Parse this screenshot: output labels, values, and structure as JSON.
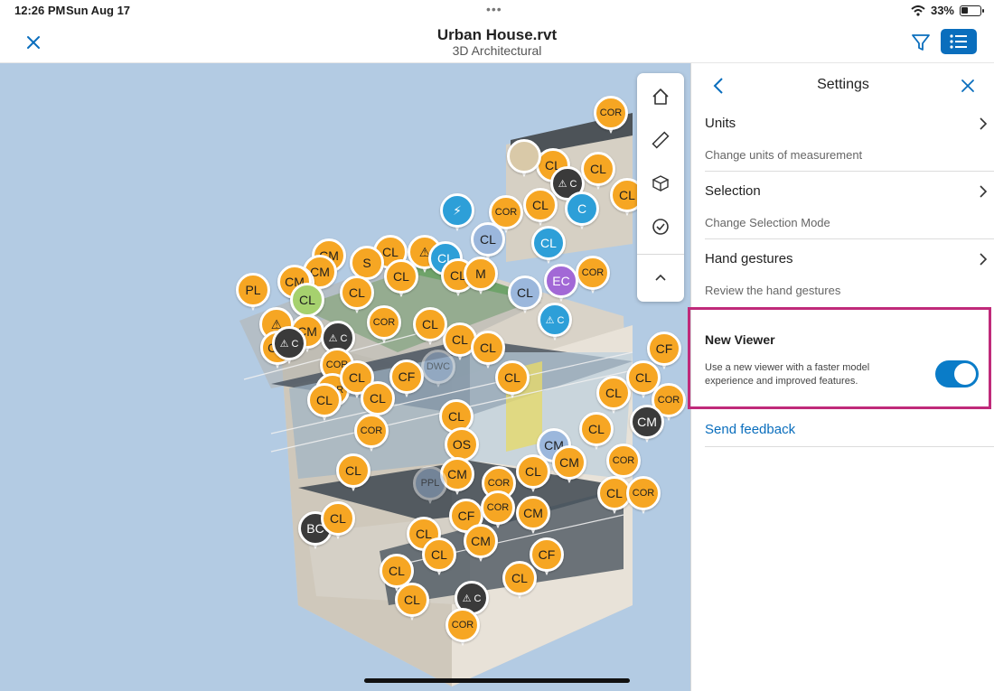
{
  "status_bar": {
    "time": "12:26 PM",
    "date": "Sun Aug 17",
    "battery": "33%",
    "battery_level": 0.33
  },
  "header": {
    "title": "Urban House.rvt",
    "subtitle": "3D Architectural",
    "close_icon": "close-icon",
    "filter_icon": "filter-icon",
    "list_icon": "list-icon",
    "accent": "#0a6ebd"
  },
  "viewer": {
    "background": "#b3cbe3",
    "toolbar": [
      "home-icon",
      "measure-icon",
      "model-browser-icon",
      "checkmark-icon",
      "collapse-icon"
    ],
    "marker_colors": {
      "orange": "#f6a623",
      "dark": "#3a3a3a",
      "blue": "#2d9fd8",
      "lightblue": "#9bb7dc",
      "green": "#a6d16e",
      "purple": "#a268d6",
      "tan": "#d9c9a8"
    },
    "markers": [
      {
        "label": "COR",
        "color": "orange"
      },
      {
        "label": "CL",
        "color": "orange"
      },
      {
        "label": "⚠ C",
        "color": "dark"
      },
      {
        "label": "CL",
        "color": "orange"
      },
      {
        "label": "CL",
        "color": "orange"
      },
      {
        "label": "",
        "color": "tan"
      },
      {
        "label": "⚡",
        "color": "blue"
      },
      {
        "label": "COR",
        "color": "orange"
      },
      {
        "label": "CL",
        "color": "orange"
      },
      {
        "label": "CL",
        "color": "lightblue"
      },
      {
        "label": "CL",
        "color": "blue"
      },
      {
        "label": "C",
        "color": "blue"
      },
      {
        "label": "CM",
        "color": "orange"
      },
      {
        "label": "CL",
        "color": "orange"
      },
      {
        "label": "⚠",
        "color": "orange"
      },
      {
        "label": "CM",
        "color": "orange"
      },
      {
        "label": "CM",
        "color": "orange"
      },
      {
        "label": "S",
        "color": "orange"
      },
      {
        "label": "CL",
        "color": "orange"
      },
      {
        "label": "CL",
        "color": "blue"
      },
      {
        "label": "CL",
        "color": "orange"
      },
      {
        "label": "M",
        "color": "orange"
      },
      {
        "label": "COR",
        "color": "orange"
      },
      {
        "label": "EC",
        "color": "purple"
      },
      {
        "label": "PL",
        "color": "orange"
      },
      {
        "label": "CM",
        "color": "orange"
      },
      {
        "label": "CL",
        "color": "green"
      },
      {
        "label": "CL",
        "color": "orange"
      },
      {
        "label": "CM",
        "color": "orange"
      },
      {
        "label": "CL",
        "color": "lightblue"
      },
      {
        "label": "COR",
        "color": "orange"
      },
      {
        "label": "⚠",
        "color": "orange"
      },
      {
        "label": "CM",
        "color": "orange"
      },
      {
        "label": "⚠ C",
        "color": "dark"
      },
      {
        "label": "⚠ C",
        "color": "dark"
      },
      {
        "label": "COR",
        "color": "orange"
      },
      {
        "label": "CL",
        "color": "orange"
      },
      {
        "label": "CL",
        "color": "orange"
      },
      {
        "label": "CL",
        "color": "orange"
      },
      {
        "label": "⚠ C",
        "color": "blue"
      },
      {
        "label": "CF",
        "color": "orange"
      },
      {
        "label": "COR",
        "color": "orange"
      },
      {
        "label": "CL",
        "color": "orange"
      },
      {
        "label": "CL",
        "color": "orange"
      },
      {
        "label": "CF",
        "color": "orange"
      },
      {
        "label": "DWC",
        "color": "lightblue"
      },
      {
        "label": "CL",
        "color": "orange"
      },
      {
        "label": "CL",
        "color": "orange"
      },
      {
        "label": "CL",
        "color": "orange"
      },
      {
        "label": "COR",
        "color": "orange"
      },
      {
        "label": "CL",
        "color": "orange"
      },
      {
        "label": "CL",
        "color": "orange"
      },
      {
        "label": "CM",
        "color": "dark"
      },
      {
        "label": "COR",
        "color": "orange"
      },
      {
        "label": "CL",
        "color": "orange"
      },
      {
        "label": "OS",
        "color": "orange"
      },
      {
        "label": "CM",
        "color": "lightblue"
      },
      {
        "label": "CM",
        "color": "orange"
      },
      {
        "label": "CL",
        "color": "orange"
      },
      {
        "label": "COR",
        "color": "orange"
      },
      {
        "label": "CM",
        "color": "orange"
      },
      {
        "label": "PPL",
        "color": "lightblue"
      },
      {
        "label": "CL",
        "color": "orange"
      },
      {
        "label": "COR",
        "color": "orange"
      },
      {
        "label": "CF",
        "color": "orange"
      },
      {
        "label": "CL",
        "color": "orange"
      },
      {
        "label": "BC",
        "color": "dark"
      },
      {
        "label": "CL",
        "color": "orange"
      },
      {
        "label": "CM",
        "color": "orange"
      },
      {
        "label": "CF",
        "color": "orange"
      },
      {
        "label": "CL",
        "color": "orange"
      },
      {
        "label": "⚠ C",
        "color": "dark"
      },
      {
        "label": "COR",
        "color": "orange"
      },
      {
        "label": "CM",
        "color": "orange"
      },
      {
        "label": "CL",
        "color": "orange"
      },
      {
        "label": "COR",
        "color": "orange"
      },
      {
        "label": "COR",
        "color": "orange"
      },
      {
        "label": "CL",
        "color": "orange"
      },
      {
        "label": "CL",
        "color": "orange"
      },
      {
        "label": "CL",
        "color": "orange"
      }
    ]
  },
  "settings": {
    "title": "Settings",
    "back_icon": "chevron-left-icon",
    "close_icon": "close-icon",
    "items": [
      {
        "label": "Units",
        "description": "Change units of measurement"
      },
      {
        "label": "Selection",
        "description": "Change Selection Mode"
      },
      {
        "label": "Hand gestures",
        "description": "Review the hand gestures"
      }
    ],
    "new_viewer": {
      "title": "New Viewer",
      "description": "Use a new viewer with a faster model experience and improved features.",
      "enabled": true,
      "highlight_color": "#c02a7a"
    },
    "feedback_link": "Send feedback"
  }
}
